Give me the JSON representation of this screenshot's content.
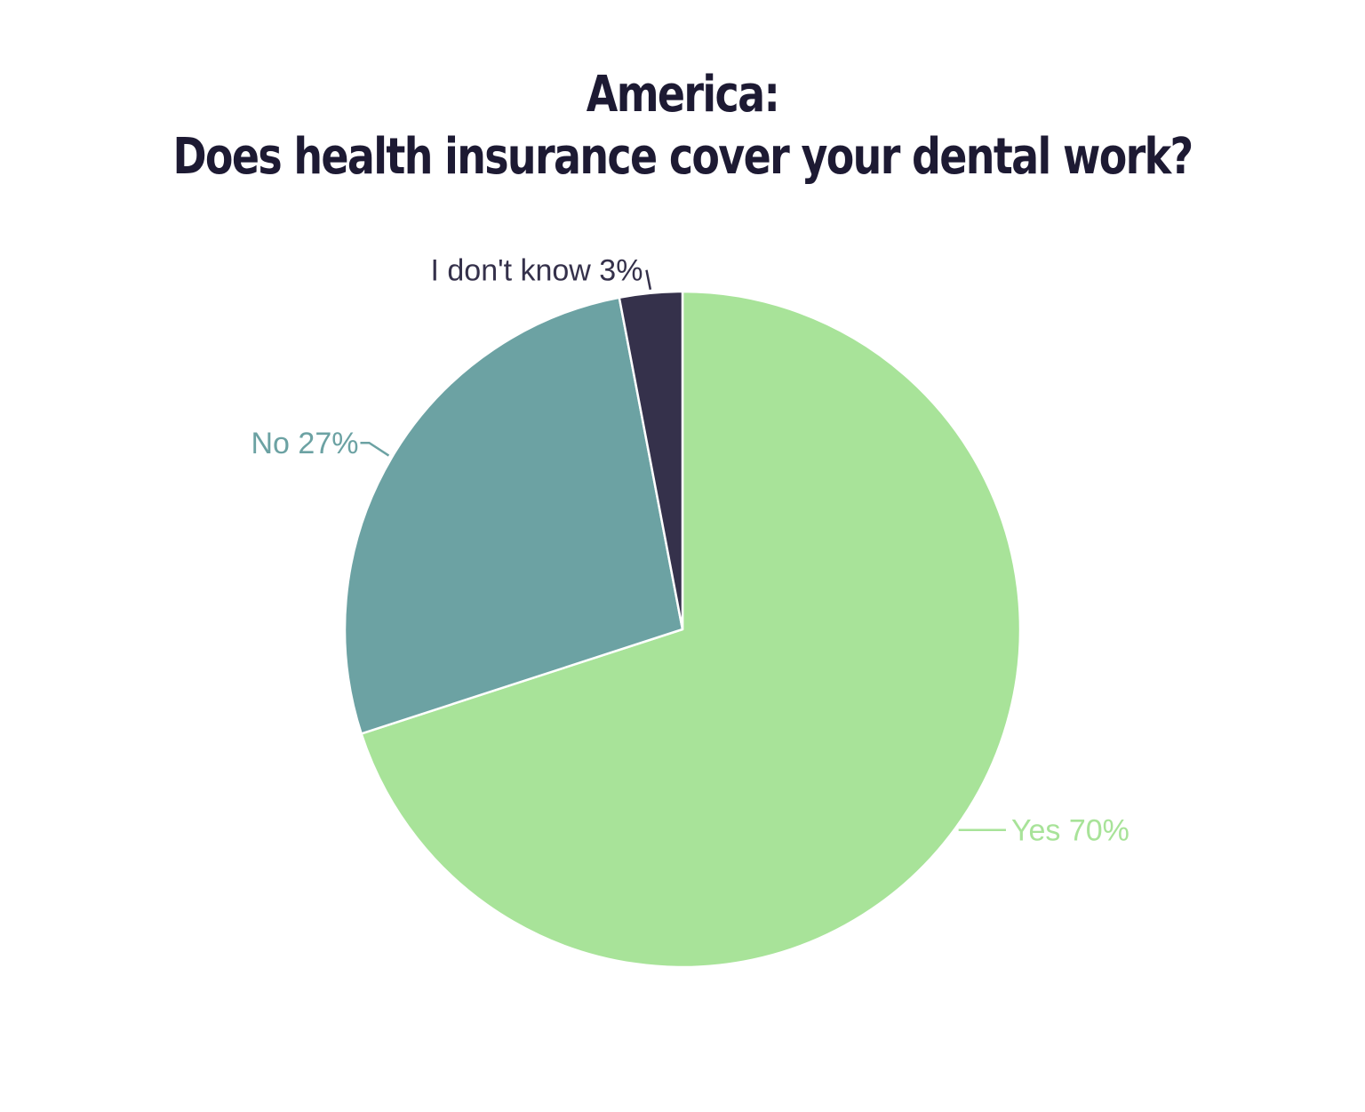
{
  "chart_data": {
    "type": "pie",
    "title": "America:",
    "subtitle": "Does health insurance cover your dental work?",
    "slices": [
      {
        "label": "Yes 70%",
        "category": "Yes",
        "value": 70,
        "color": "#a8e399"
      },
      {
        "label": "No 27%",
        "category": "No",
        "value": 27,
        "color": "#6ca2a3"
      },
      {
        "label": "I don't know 3%",
        "category": "I don't know",
        "value": 3,
        "color": "#35314b"
      }
    ],
    "start_angle": "top",
    "direction": "clockwise"
  },
  "colors": {
    "title": "#1d1a33",
    "slice_border": "#ffffff"
  }
}
